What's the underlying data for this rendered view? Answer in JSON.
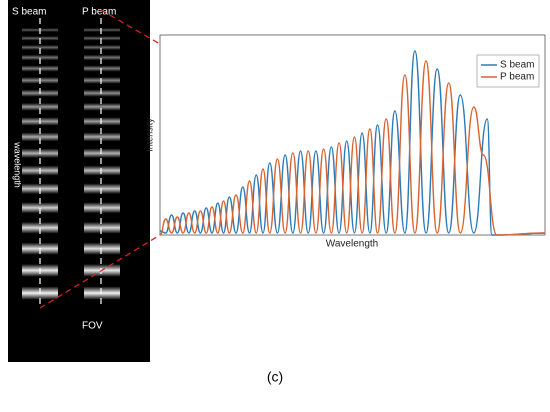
{
  "image_panel": {
    "labels": [
      "S beam",
      "P beam",
      "wavelength",
      "FOV"
    ]
  },
  "chart_data": {
    "type": "line",
    "xlabel": "Wavelength",
    "ylabel": "Intensity",
    "xlim": [
      0,
      100
    ],
    "ylim": [
      0,
      100
    ],
    "legend": "upper right",
    "series": [
      {
        "name": "S beam",
        "color": "#2b7bba",
        "x": [
          0,
          1.5,
          3,
          4.5,
          6,
          7.5,
          9,
          10.5,
          12,
          13.5,
          15,
          16.5,
          18,
          19.75,
          21.5,
          23.25,
          25,
          26.75,
          28.5,
          30.5,
          32.5,
          34.5,
          36.5,
          38.5,
          40.5,
          42.5,
          44.5,
          46.5,
          48.5,
          50.5,
          52.5,
          54.5,
          56.5,
          58.75,
          61,
          63.6,
          66.2,
          69.1,
          72,
          75,
          78,
          81.5,
          85,
          86.2,
          88,
          100
        ],
        "values": [
          2,
          1,
          10,
          1,
          11,
          1,
          12,
          1,
          13.5,
          1,
          16,
          1,
          19,
          1,
          24,
          1,
          30,
          1,
          36,
          1,
          40,
          1,
          42,
          1,
          42,
          1,
          44,
          1,
          47,
          1,
          51,
          1,
          55,
          1,
          62,
          1,
          92,
          1,
          83,
          1,
          70,
          1,
          58,
          0,
          0,
          1
        ]
      },
      {
        "name": "P beam",
        "color": "#d9642f",
        "x": [
          0,
          1.5,
          3,
          4.5,
          6,
          7.5,
          9,
          10.5,
          12,
          13.5,
          15,
          16.5,
          18,
          19.75,
          21.5,
          23.25,
          25,
          26.75,
          28.5,
          30.5,
          32.5,
          34.5,
          36.5,
          38.5,
          40.5,
          42.5,
          44.5,
          46.5,
          48.5,
          50.5,
          52.5,
          54.5,
          56.5,
          58.75,
          61,
          63.6,
          66.2,
          69.1,
          72,
          75,
          78,
          81.5,
          84,
          87.5,
          100
        ],
        "values": [
          0,
          8,
          1,
          9,
          1,
          11,
          1,
          12,
          1,
          14,
          1,
          17,
          1,
          20,
          1,
          27,
          1,
          33,
          1,
          38,
          1,
          41,
          1,
          42,
          1,
          43,
          1,
          46,
          1,
          49,
          1,
          53,
          1,
          58,
          1,
          80,
          1,
          87,
          1,
          76,
          1,
          64,
          40,
          0,
          1
        ]
      }
    ]
  },
  "caption": "(c)"
}
